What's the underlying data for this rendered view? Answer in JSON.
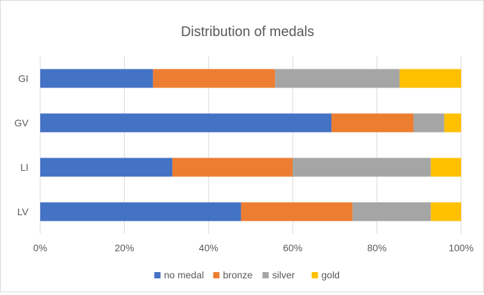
{
  "chart_data": {
    "type": "bar",
    "orientation": "horizontal",
    "stacked": "percent",
    "title": "Distribution of medals",
    "categories": [
      "GI",
      "GV",
      "LI",
      "LV"
    ],
    "series": [
      {
        "name": "no medal",
        "color": "#4472C4",
        "values": [
          26.8,
          69.2,
          31.4,
          47.7
        ]
      },
      {
        "name": "bronze",
        "color": "#ED7D31",
        "values": [
          29.0,
          19.5,
          28.6,
          26.5
        ]
      },
      {
        "name": "silver",
        "color": "#A5A5A5",
        "values": [
          29.6,
          7.3,
          32.8,
          18.6
        ]
      },
      {
        "name": "gold",
        "color": "#FFC000",
        "values": [
          14.6,
          4.0,
          7.2,
          7.2
        ]
      }
    ],
    "xlim": [
      0,
      100
    ],
    "x_ticks": [
      "0%",
      "20%",
      "40%",
      "60%",
      "80%",
      "100%"
    ],
    "x_tick_values": [
      0,
      20,
      40,
      60,
      80,
      100
    ],
    "grid": "vertical",
    "legend_position": "bottom"
  }
}
